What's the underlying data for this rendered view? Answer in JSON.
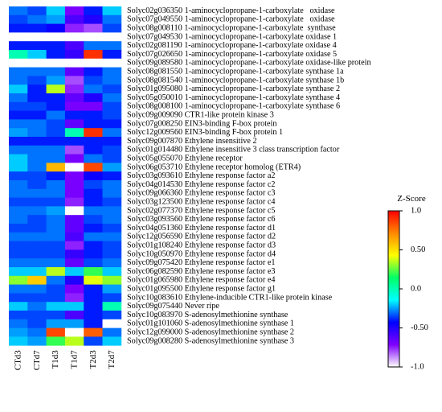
{
  "chart_data": {
    "type": "heatmap",
    "columns": [
      "CTd3",
      "CTd7",
      "T1d3",
      "T1d7",
      "T2d3",
      "T2d7"
    ],
    "rows": [
      "Solyc02g036350 1-aminocyclopropane-1-carboxylate   oxidase",
      "Solyc07g049550 1-aminocyclopropane-1-carboxylate   oxidase",
      "Solyc08g008110 1-aminocyclopropane-1-carboxylate  synthase",
      "Solyc07g049530 1-aminocyclopropane-1-carboxylate oxidase 1",
      "Solyc02g081190 1-aminocyclopropane-1-carboxylate oxidase 4",
      "Solyc07g026650 1-aminocyclopropane-1-carboxylate oxidase 5",
      "Solyc09g089580 1-aminocyclopropane-1-carboxylate oxidase-like protein",
      "Solyc08g081550 1-aminocyclopropane-1-carboxylate synthase 1a",
      "Solyc08g081540 1-aminocyclopropane-1-carboxylate synthase 1b",
      "Solyc01g095080 1-aminocyclopropane-1-carboxylate synthase 2",
      "Solyc05g050010 1-aminocyclopropane-1-carboxylate synthase 4",
      "Solyc08g008100 1-aminocyclopropane-1-carboxylate synthase 6",
      "Solyc09g009090 CTR1-like protein kinase 3",
      "Solyc07g008250 EIN3-binding F-box protein",
      "Solyc12g009560 EIN3-binding F-box protein 1",
      "Solyc09g007870 Ethylene insensitive 2",
      "Solyc01g014480 Ethylene insensitive 3 class transcription factor",
      "Solyc05g055070 Ethylene receptor",
      "Solyc06g053710 Ethylene receptor homolog (ETR4)",
      "Solyc03g093610 Ethylene response factor a2",
      "Solyc04g014530 Ethylene response factor c2",
      "Solyc09g066360 Ethylene response factor c3",
      "Solyc03g123500 Ethylene response factor c4",
      "Solyc02g077370 Ethylene response factor c5",
      "Solyc03g093560 Ethylene response factor c6",
      "Solyc04g051360 Ethylene response factor d1",
      "Solyc12g056590 Ethylene response factor d2",
      "Solyc01g108240 Ethylene response factor d3",
      "Solyc10g050970 Ethylene response factor d4",
      "Solyc09g075420 Ethylene response factor e1",
      "Solyc06g082590 Ethylene response factor e3",
      "Solyc01g065980 Ethylene response factor e4",
      "Solyc01g095500 Ethylene response factor g1",
      "Solyc10g083610 Ethylene-inducible CTR1-like protein kinase",
      "Solyc09g075440 Never ripe",
      "Solyc10g083970 S-adenosylmethionine synthase",
      "Solyc01g101060 S-adenosylmethionine synthase 1",
      "Solyc12g099000 S-adenosylmethionine synthase 2",
      "Solyc09g008280 S-adenosylmethionine synthase 3"
    ],
    "values": [
      [
        -0.3,
        -0.35,
        -0.2,
        -0.7,
        -0.4,
        -0.2
      ],
      [
        -0.35,
        -0.3,
        -0.25,
        -0.6,
        -0.5,
        -0.3
      ],
      [
        -0.4,
        -0.4,
        -0.45,
        -0.75,
        -0.8,
        -0.35
      ],
      [
        -1.0,
        -1.0,
        -1.0,
        -1.0,
        -1.0,
        -1.0
      ],
      [
        -0.4,
        -0.4,
        -0.4,
        -0.6,
        -0.3,
        -0.3
      ],
      [
        0.0,
        -0.2,
        -0.4,
        -0.55,
        0.9,
        -0.4
      ],
      [
        -1.0,
        -1.0,
        -1.0,
        -1.0,
        -1.0,
        -1.0
      ],
      [
        -0.3,
        -0.3,
        -0.3,
        -0.65,
        -0.4,
        -0.3
      ],
      [
        -0.3,
        -0.35,
        -0.25,
        -0.8,
        -0.35,
        -0.3
      ],
      [
        -0.2,
        -0.4,
        0.35,
        -0.75,
        -0.3,
        -0.35
      ],
      [
        -0.3,
        -0.4,
        -0.4,
        -0.65,
        -0.5,
        -0.3
      ],
      [
        -0.35,
        -0.35,
        -0.4,
        -0.7,
        -0.7,
        -0.35
      ],
      [
        -0.4,
        -0.4,
        -0.3,
        -0.4,
        -0.4,
        -0.35
      ],
      [
        -0.3,
        -0.3,
        -0.35,
        -0.65,
        -0.4,
        -0.4
      ],
      [
        -0.25,
        -0.3,
        -0.35,
        0.0,
        0.9,
        -0.3
      ],
      [
        -0.4,
        -0.4,
        -0.4,
        -0.4,
        -0.4,
        -0.4
      ],
      [
        -0.3,
        -0.3,
        -0.3,
        -0.8,
        -0.4,
        -0.35
      ],
      [
        -0.2,
        -0.3,
        -0.3,
        -0.7,
        -0.3,
        -0.35
      ],
      [
        -0.2,
        -0.3,
        0.6,
        -1.0,
        0.85,
        -0.25
      ],
      [
        -0.35,
        -0.35,
        -0.4,
        -0.7,
        -0.45,
        -0.4
      ],
      [
        -0.3,
        -0.35,
        -0.3,
        -0.7,
        -0.35,
        -0.3
      ],
      [
        -0.3,
        -0.3,
        -0.3,
        -0.7,
        -0.4,
        -0.3
      ],
      [
        -0.35,
        -0.35,
        -0.35,
        -0.75,
        -0.4,
        -0.35
      ],
      [
        -0.3,
        -0.3,
        -0.25,
        -1.0,
        -0.3,
        -0.3
      ],
      [
        -0.3,
        -0.35,
        -0.3,
        -0.65,
        -0.35,
        -0.3
      ],
      [
        -0.35,
        -0.35,
        -0.3,
        -0.65,
        -0.4,
        -0.35
      ],
      [
        -0.3,
        -0.3,
        -0.3,
        -0.6,
        -0.3,
        -0.3
      ],
      [
        -0.35,
        -0.35,
        -0.35,
        -0.75,
        -0.4,
        -0.35
      ],
      [
        -0.35,
        -0.35,
        -0.35,
        -0.55,
        -0.4,
        -0.35
      ],
      [
        -0.3,
        -0.3,
        -0.3,
        -0.65,
        -0.35,
        -0.3
      ],
      [
        -0.2,
        -0.2,
        0.35,
        -0.2,
        0.2,
        -0.2
      ],
      [
        0.3,
        0.55,
        -0.3,
        -0.5,
        0.4,
        0.3
      ],
      [
        -0.3,
        -0.3,
        -0.35,
        -0.7,
        -0.4,
        -0.25
      ],
      [
        -0.35,
        -0.35,
        -0.35,
        -0.75,
        -0.4,
        -0.35
      ],
      [
        -0.2,
        -0.3,
        -0.2,
        -0.2,
        -0.4,
        0.0
      ],
      [
        -0.35,
        -0.35,
        -0.35,
        -0.6,
        -0.4,
        -0.35
      ],
      [
        -0.3,
        -0.35,
        -0.25,
        -0.25,
        -0.4,
        -1.0
      ],
      [
        -0.25,
        -0.3,
        0.85,
        -1.0,
        0.8,
        -0.3
      ],
      [
        -0.2,
        -0.25,
        0.2,
        0.35,
        -0.35,
        -0.2
      ]
    ],
    "colorbar": {
      "title": "Z-Score",
      "min": -1.0,
      "max": 1.0,
      "ticks": [
        "1.0",
        "0.50",
        "0.0",
        "-0.50",
        "-1.0"
      ],
      "tick_values": [
        1.0,
        0.5,
        0.0,
        -0.5,
        -1.0
      ],
      "colors": [
        "#ffffff",
        "#7f00ff",
        "#0000ff",
        "#00ffff",
        "#00ff66",
        "#ffff00",
        "#ff8800",
        "#ff0000"
      ]
    }
  }
}
